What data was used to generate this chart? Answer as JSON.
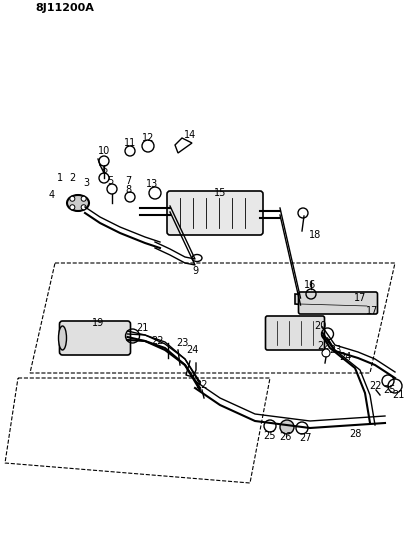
{
  "title": "8J11200A",
  "bg_color": "#ffffff",
  "line_color": "#000000",
  "figsize": [
    4.09,
    5.33
  ],
  "dpi": 100
}
